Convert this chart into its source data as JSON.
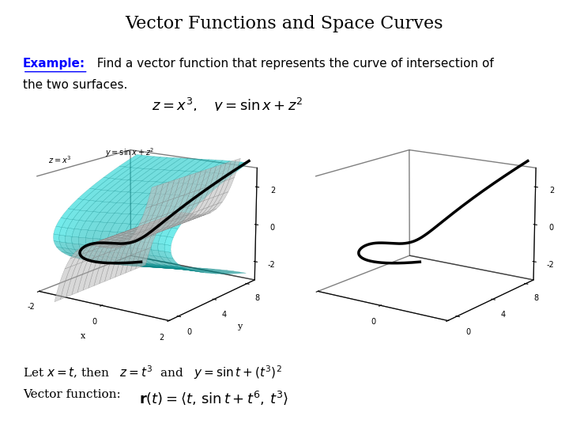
{
  "title": "Vector Functions and Space Curves",
  "title_fontsize": 16,
  "background_color": "#ffffff",
  "example_label": "Example:",
  "bottom_text1": "Let $x = t$, then   $z = t^3$  and   $y = \\sin t +(t^3)^2$",
  "bottom_text2": "Vector function:",
  "vector_func": "$\\mathbf{r}(t) = \\langle t,\\, \\sin t + t^6,\\, t^3 \\rangle$",
  "surface_label1": "$z = x^3$",
  "surface_label2": "$y = \\sin x + z^2$",
  "eq_display": "$z = x^3, \\quad y = \\sin x + z^2$"
}
